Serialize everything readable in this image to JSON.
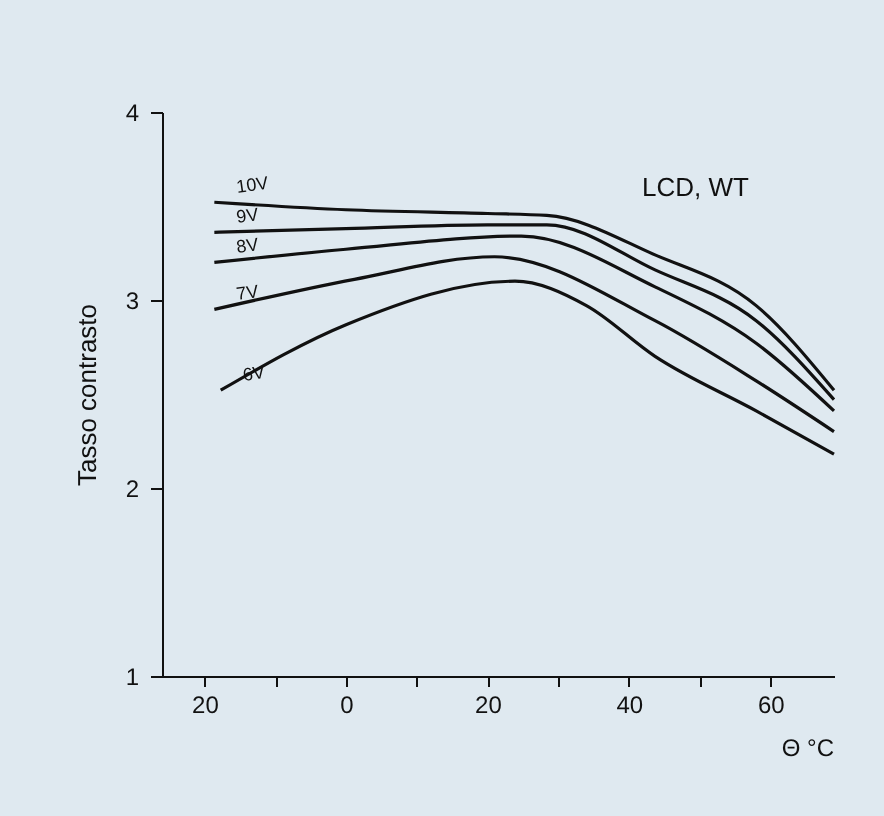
{
  "chart_data": {
    "type": "line",
    "xlabel": "Θ °C",
    "ylabel": "Tasso contrasto",
    "annotations": [
      "LCD, WT"
    ],
    "xlim": [
      -26,
      69
    ],
    "ylim": [
      1,
      4
    ],
    "xticks": [
      {
        "value": -20,
        "label": "20"
      },
      {
        "value": -10,
        "label": null
      },
      0,
      {
        "value": 10,
        "label": null
      },
      20,
      {
        "value": 30,
        "label": null
      },
      40,
      {
        "value": 50,
        "label": null
      },
      60
    ],
    "yticks": [
      1,
      2,
      3,
      4
    ],
    "grid": false,
    "marker": "none",
    "line_style": "solid",
    "series": [
      {
        "name": "10V",
        "color": "#111111",
        "x": [
          -18.6,
          0,
          20,
          28.4,
          43.7,
          58,
          69
        ],
        "values": [
          3.52,
          3.48,
          3.46,
          3.45,
          3.24,
          2.97,
          2.52
        ]
      },
      {
        "name": "9V",
        "color": "#111111",
        "x": [
          -18.6,
          0,
          20,
          28.4,
          43.7,
          58,
          69
        ],
        "values": [
          3.36,
          3.38,
          3.4,
          3.4,
          3.16,
          2.89,
          2.47
        ]
      },
      {
        "name": "8V",
        "color": "#111111",
        "x": [
          -18.6,
          0,
          24.8,
          43.7,
          58,
          69
        ],
        "values": [
          3.2,
          3.27,
          3.34,
          3.07,
          2.77,
          2.41
        ]
      },
      {
        "name": "7V",
        "color": "#111111",
        "x": [
          -18.6,
          1.2,
          21,
          43.7,
          58,
          69
        ],
        "values": [
          2.95,
          3.11,
          3.23,
          2.89,
          2.57,
          2.3
        ]
      },
      {
        "name": "6V",
        "color": "#111111",
        "x": [
          -17.7,
          0.1,
          23.9,
          34,
          43.7,
          58,
          69
        ],
        "values": [
          2.52,
          2.87,
          3.1,
          2.97,
          2.7,
          2.41,
          2.18
        ]
      }
    ]
  }
}
